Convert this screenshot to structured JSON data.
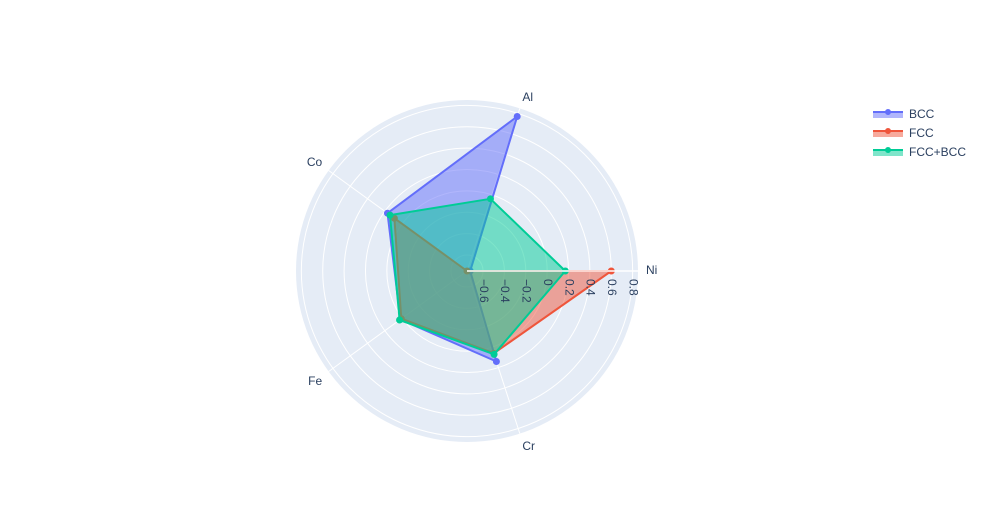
{
  "chart_data": {
    "type": "radar",
    "title": "",
    "axes": [
      "Ni",
      "Al",
      "Co",
      "Fe",
      "Cr"
    ],
    "radial_range": [
      -0.75,
      0.85
    ],
    "radial_ticks": [
      -0.6,
      -0.4,
      -0.2,
      0,
      0.2,
      0.4,
      0.6,
      0.8
    ],
    "radial_tick_labels": [
      "−0.6",
      "−0.4",
      "−0.2",
      "0",
      "0.2",
      "0.4",
      "0.6",
      "0.8"
    ],
    "grid": true,
    "legend_position": "top-right",
    "series": [
      {
        "name": "BCC",
        "color": "#636efa",
        "values": [
          -0.72,
          0.77,
          0.17,
          0.02,
          0.14
        ]
      },
      {
        "name": "FCC",
        "color": "#ef553b",
        "values": [
          0.6,
          -0.75,
          0.09,
          0.01,
          0.06
        ]
      },
      {
        "name": "FCC+BCC",
        "color": "#00cc96",
        "values": [
          0.17,
          -0.04,
          0.14,
          0.03,
          0.07
        ]
      }
    ]
  }
}
